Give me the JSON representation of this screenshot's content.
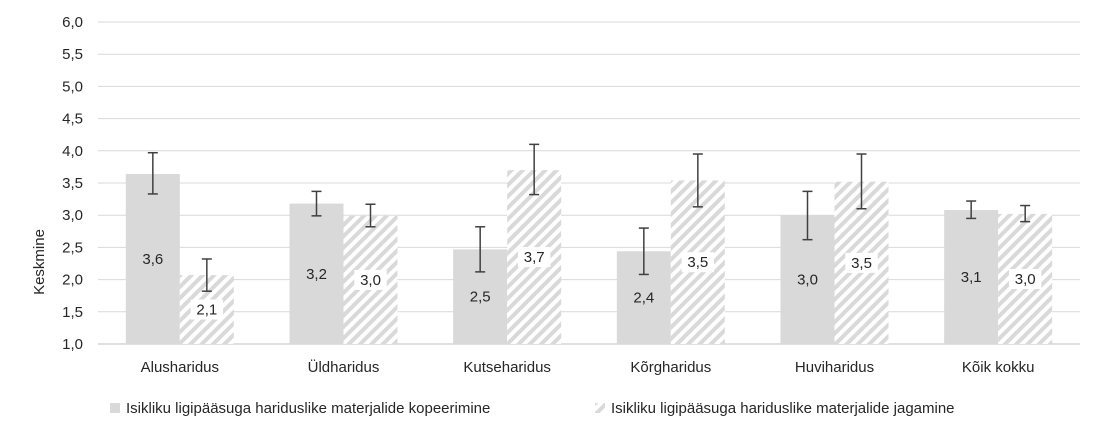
{
  "chart_data": {
    "type": "bar",
    "title": "",
    "xlabel": "",
    "ylabel": "Keskmine",
    "ylim": [
      1.0,
      6.0
    ],
    "yticks": [
      "1,0",
      "1,5",
      "2,0",
      "2,5",
      "3,0",
      "3,5",
      "4,0",
      "4,5",
      "5,0",
      "5,5",
      "6,0"
    ],
    "grid": true,
    "legend_position": "bottom",
    "categories": [
      "Alusharidus",
      "Üldharidus",
      "Kutseharidus",
      "Kõrgharidus",
      "Huviharidus",
      "Kõik kokku"
    ],
    "series": [
      {
        "name": "Isikliku ligipääsuga hariduslike materjalide kopeerimine",
        "style": "solid",
        "color": "#d9d9d9",
        "values": [
          3.64,
          3.18,
          2.47,
          2.44,
          3.0,
          3.08
        ],
        "labels": [
          "3,6",
          "3,2",
          "2,5",
          "2,4",
          "3,0",
          "3,1"
        ],
        "error_low": [
          3.33,
          2.99,
          2.12,
          2.08,
          2.62,
          2.95
        ],
        "error_high": [
          3.97,
          3.37,
          2.82,
          2.8,
          3.37,
          3.22
        ]
      },
      {
        "name": "Isikliku ligipääsuga hariduslike materjalide jagamine",
        "style": "hatched",
        "color": "#d9d9d9",
        "values": [
          2.07,
          2.99,
          3.7,
          3.54,
          3.52,
          3.02
        ],
        "labels": [
          "2,1",
          "3,0",
          "3,7",
          "3,5",
          "3,5",
          "3,0"
        ],
        "error_low": [
          1.82,
          2.82,
          3.32,
          3.13,
          3.1,
          2.9
        ],
        "error_high": [
          2.32,
          3.17,
          4.1,
          3.95,
          3.95,
          3.15
        ]
      }
    ]
  }
}
